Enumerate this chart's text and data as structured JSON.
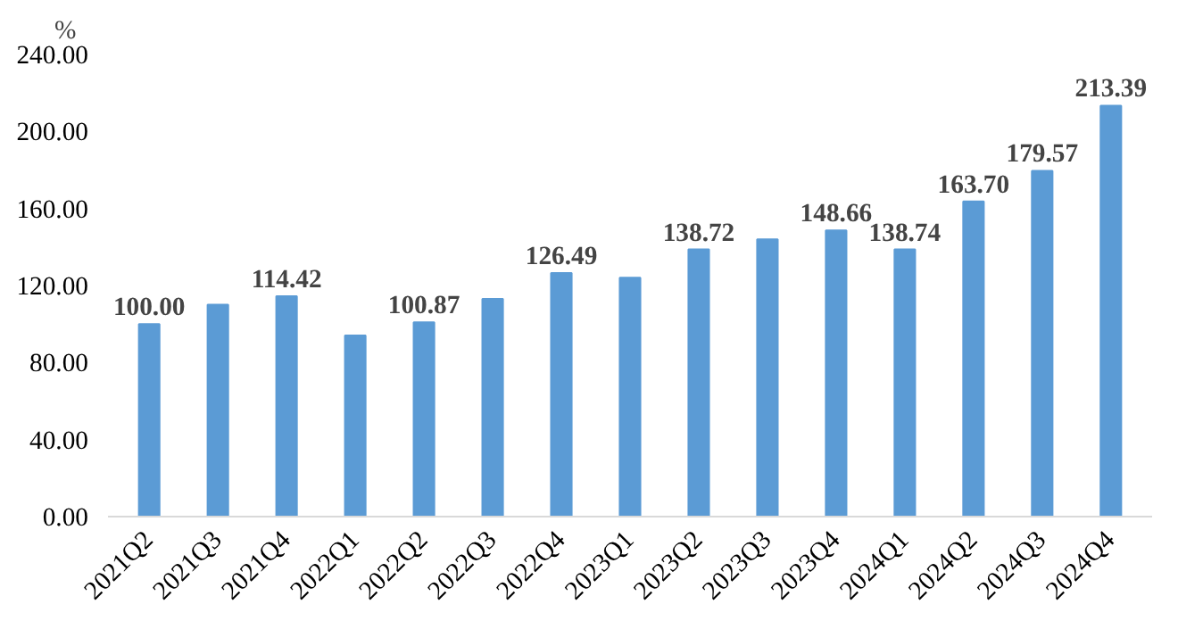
{
  "chart_data": {
    "type": "bar",
    "ylabel": "%",
    "categories": [
      "2021Q2",
      "2021Q3",
      "2021Q4",
      "2022Q1",
      "2022Q2",
      "2022Q3",
      "2022Q4",
      "2023Q1",
      "2023Q2",
      "2023Q3",
      "2023Q4",
      "2024Q1",
      "2024Q2",
      "2024Q3",
      "2024Q4"
    ],
    "values": [
      100.0,
      110,
      114.42,
      94,
      100.87,
      113,
      126.49,
      124,
      138.72,
      144,
      148.66,
      138.74,
      163.7,
      179.57,
      213.39
    ],
    "value_labels": [
      "100.00",
      null,
      "114.42",
      null,
      "100.87",
      null,
      "126.49",
      null,
      "138.72",
      null,
      "148.66",
      "138.74",
      "163.70",
      "179.57",
      "213.39"
    ],
    "color": "#5b9bd5",
    "ylim": [
      0,
      240
    ],
    "yticks": [
      {
        "value": 0,
        "label": "0.00"
      },
      {
        "value": 40,
        "label": "40.00"
      },
      {
        "value": 80,
        "label": "80.00"
      },
      {
        "value": 120,
        "label": "120.00"
      },
      {
        "value": 160,
        "label": "160.00"
      },
      {
        "value": 200,
        "label": "200.00"
      },
      {
        "value": 240,
        "label": "240.00"
      }
    ],
    "grid": false
  }
}
